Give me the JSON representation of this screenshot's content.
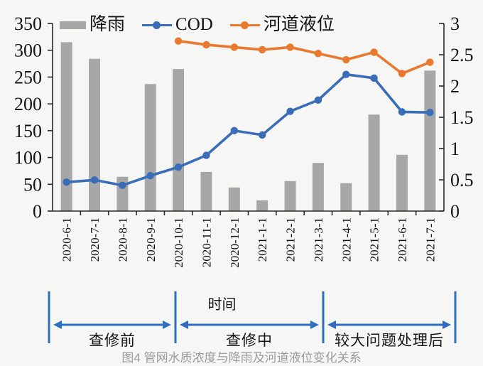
{
  "figure": {
    "caption": "图4 管网水质浓度与降雨及河道液位变化关系"
  },
  "chart_data": {
    "type": "combo-bar-line",
    "title": "",
    "xlabel": "时间",
    "grid": false,
    "legend_position": "top",
    "categories": [
      "2020-6-1",
      "2020-7-1",
      "2020-8-1",
      "2020-9-1",
      "2020-10-1",
      "2020-11-1",
      "2020-12-1",
      "2021-1-1",
      "2021-2-1",
      "2021-3-1",
      "2021-4-1",
      "2021-5-1",
      "2021-6-1",
      "2021-7-1"
    ],
    "series": [
      {
        "name": "降雨",
        "type": "bar",
        "axis": "left",
        "color": "#a7a7a7",
        "values": [
          315,
          284,
          64,
          237,
          265,
          73,
          44,
          20,
          56,
          90,
          52,
          180,
          105,
          262
        ]
      },
      {
        "name": "COD",
        "type": "line",
        "axis": "left",
        "color": "#3a6db8",
        "values": [
          54,
          58,
          48,
          66,
          82,
          104,
          150,
          142,
          186,
          207,
          255,
          248,
          185,
          184
        ]
      },
      {
        "name": "河道液位",
        "type": "line",
        "axis": "right",
        "color": "#e8792e",
        "values": [
          null,
          null,
          null,
          null,
          2.72,
          2.66,
          2.62,
          2.58,
          2.62,
          2.52,
          2.42,
          2.54,
          2.2,
          2.38
        ]
      }
    ],
    "axes": {
      "left": {
        "min": 0,
        "max": 350,
        "ticks": [
          0,
          50,
          100,
          150,
          200,
          250,
          300,
          350
        ]
      },
      "right": {
        "min": 0,
        "max": 3,
        "ticks": [
          0,
          0.5,
          1,
          1.5,
          2,
          2.5,
          3
        ]
      }
    },
    "annotations": {
      "arrow_color": "#2f6fc1",
      "phases": [
        {
          "label": "查修前"
        },
        {
          "label": "查修中"
        },
        {
          "label": "较大问题处理后"
        }
      ]
    }
  }
}
